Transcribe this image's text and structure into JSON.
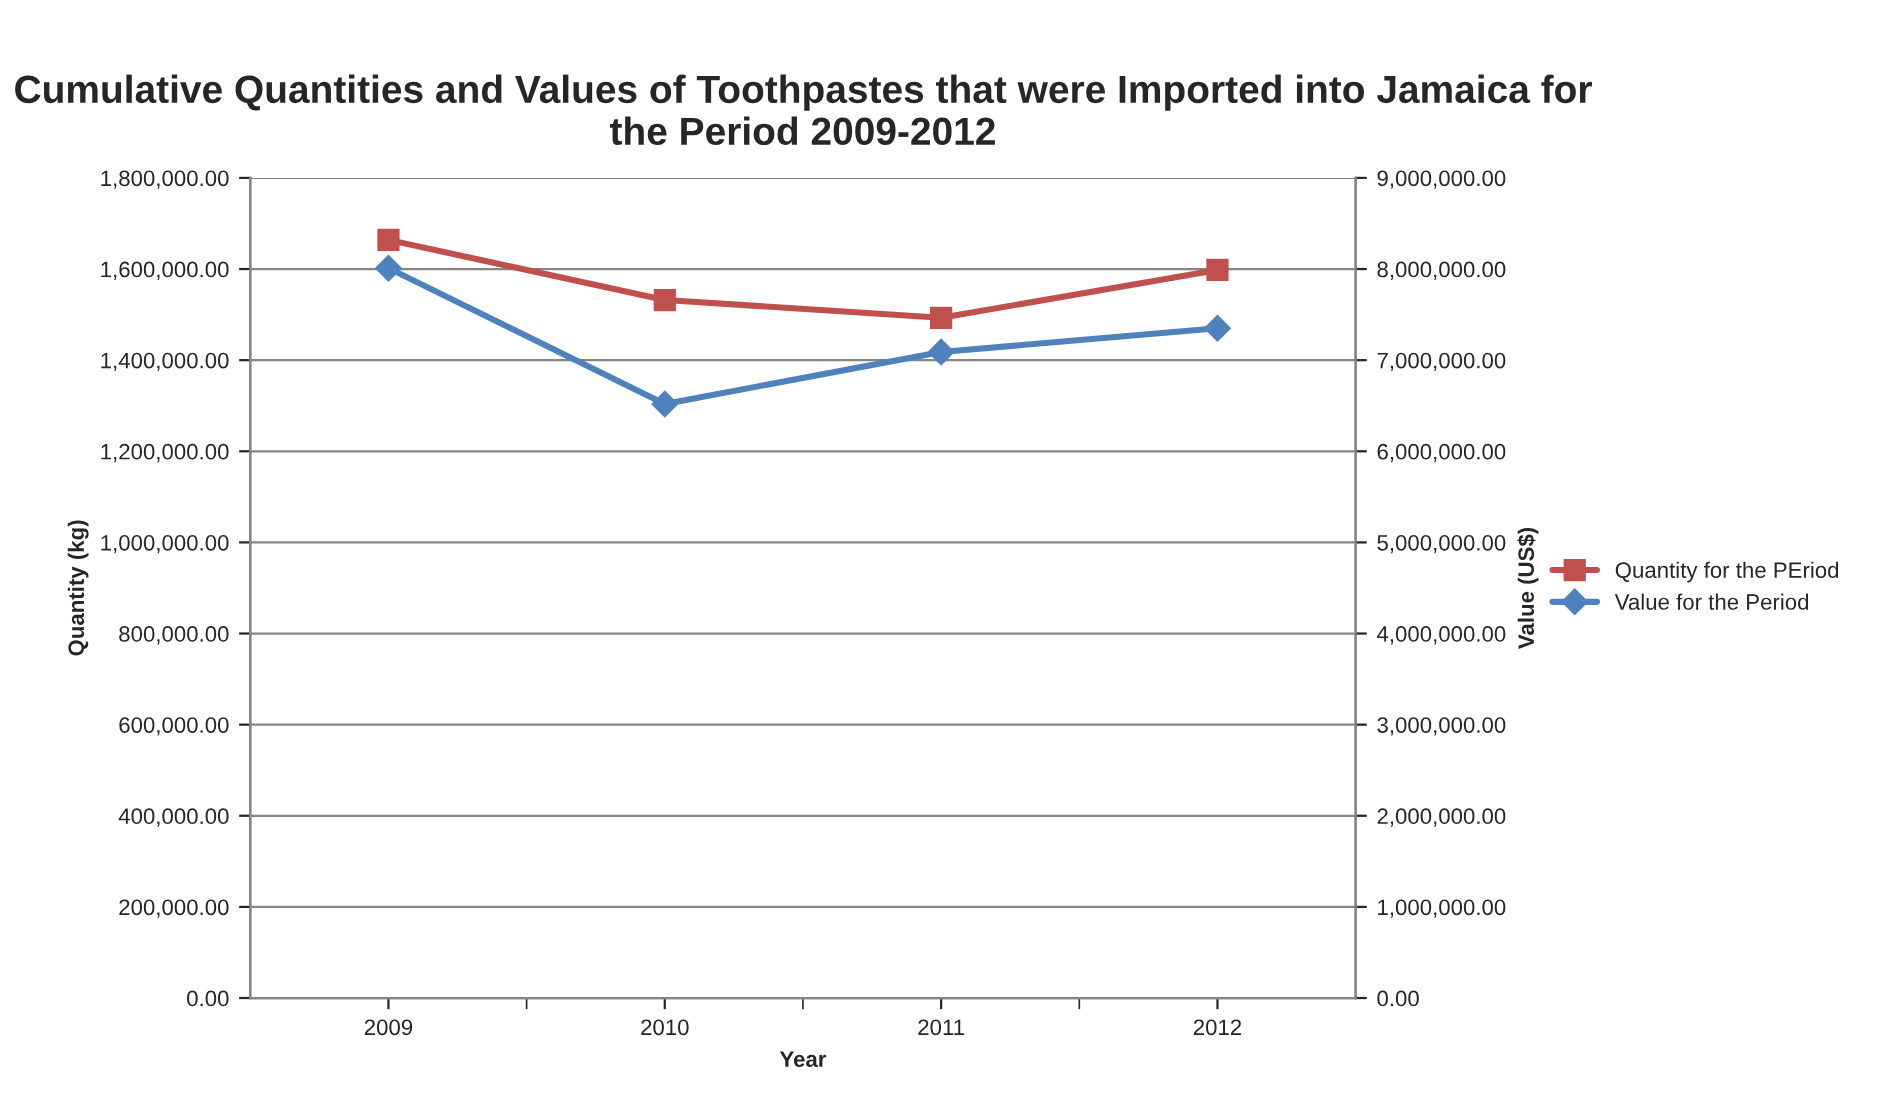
{
  "chart_data": {
    "type": "line",
    "title": "Cumulative Quantities and Values of Toothpastes that were Imported into Jamaica for the Period 2009-2012",
    "categories": [
      "2009",
      "2010",
      "2011",
      "2012"
    ],
    "xlabel": "Year",
    "ylabel": "Quantity (kg)",
    "y2label": "Value (US$)",
    "series": [
      {
        "name": "Quantity for the PEriod",
        "color": "#c0504d",
        "marker": "square",
        "values": [
          1664000,
          1532000,
          1493000,
          1598000
        ]
      },
      {
        "name": "Value for the Period",
        "color": "#4f81bd",
        "marker": "diamond",
        "axis": "y2",
        "values": [
          8010000,
          6520000,
          7090000,
          7350000
        ]
      }
    ],
    "ylim": [
      0,
      1800000
    ],
    "yticks": [
      {
        "value": 0,
        "label": "0.00"
      },
      {
        "value": 200000,
        "label": "200,000.00"
      },
      {
        "value": 400000,
        "label": "400,000.00"
      },
      {
        "value": 600000,
        "label": "600,000.00"
      },
      {
        "value": 800000,
        "label": "800,000.00"
      },
      {
        "value": 1000000,
        "label": "1,000,000.00"
      },
      {
        "value": 1200000,
        "label": "1,200,000.00"
      },
      {
        "value": 1400000,
        "label": "1,400,000.00"
      },
      {
        "value": 1600000,
        "label": "1,600,000.00"
      },
      {
        "value": 1800000,
        "label": "1,800,000.00"
      }
    ],
    "y2lim": [
      0,
      9000000
    ],
    "y2ticks": [
      {
        "value": 0,
        "label": "0.00"
      },
      {
        "value": 1000000,
        "label": "1,000,000.00"
      },
      {
        "value": 2000000,
        "label": "2,000,000.00"
      },
      {
        "value": 3000000,
        "label": "3,000,000.00"
      },
      {
        "value": 4000000,
        "label": "4,000,000.00"
      },
      {
        "value": 5000000,
        "label": "5,000,000.00"
      },
      {
        "value": 6000000,
        "label": "6,000,000.00"
      },
      {
        "value": 7000000,
        "label": "7,000,000.00"
      },
      {
        "value": 8000000,
        "label": "8,000,000.00"
      },
      {
        "value": 9000000,
        "label": "9,000,000.00"
      }
    ],
    "grid": "y",
    "legend": "right"
  }
}
